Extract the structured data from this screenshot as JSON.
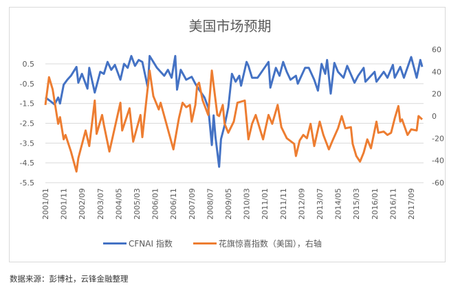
{
  "chart_data": {
    "type": "line",
    "title": "美国市场预期",
    "x_unit": "months since 2001/01",
    "x_tick_labels": [
      "2001/01",
      "2001/11",
      "2002/09",
      "2003/07",
      "2004/05",
      "2005/03",
      "2006/01",
      "2006/11",
      "2007/09",
      "2008/07",
      "2009/05",
      "2010/03",
      "2011/01",
      "2011/11",
      "2012/09",
      "2013/07",
      "2014/05",
      "2015/03",
      "2016/01",
      "2016/11",
      "2017/09"
    ],
    "x_range": [
      0,
      206
    ],
    "left_axis": {
      "ticks": [
        "0.5",
        "-0.5",
        "-1.5",
        "-2.5",
        "-3.5",
        "-4.5",
        "-5.5"
      ],
      "ylim": [
        -5.5,
        1.23
      ]
    },
    "right_axis": {
      "ticks": [
        "60",
        "40",
        "20",
        "0",
        "-20",
        "-40",
        "-60"
      ],
      "ylim": [
        -60,
        60
      ]
    },
    "grid": true,
    "legend_position": "bottom",
    "series": [
      {
        "name": "CFNAI 指数",
        "axis": "left",
        "color": "#4472c4",
        "points": [
          [
            0,
            -1.19
          ],
          [
            3,
            -1.4
          ],
          [
            5,
            -1.55
          ],
          [
            7,
            -1.2
          ],
          [
            8,
            -1.5
          ],
          [
            10,
            -0.55
          ],
          [
            12,
            -0.3
          ],
          [
            14,
            -0.1
          ],
          [
            17,
            0.35
          ],
          [
            18,
            -0.45
          ],
          [
            20,
            0.0
          ],
          [
            23,
            -0.75
          ],
          [
            24,
            0.3
          ],
          [
            27,
            -0.95
          ],
          [
            30,
            0.1
          ],
          [
            32,
            0.0
          ],
          [
            34,
            0.6
          ],
          [
            36,
            0.2
          ],
          [
            38,
            0.45
          ],
          [
            41,
            -0.3
          ],
          [
            43,
            0.5
          ],
          [
            45,
            0.3
          ],
          [
            47,
            0.9
          ],
          [
            49,
            0.4
          ],
          [
            51,
            0.7
          ],
          [
            53,
            0.6
          ],
          [
            56,
            -0.7
          ],
          [
            57,
            0.9
          ],
          [
            59,
            0.6
          ],
          [
            61,
            0.3
          ],
          [
            63,
            0.1
          ],
          [
            65,
            -0.1
          ],
          [
            67,
            0.2
          ],
          [
            69,
            -0.2
          ],
          [
            71,
            0.9
          ],
          [
            72,
            -0.8
          ],
          [
            74,
            0.2
          ],
          [
            77,
            -0.3
          ],
          [
            80,
            -0.15
          ],
          [
            82,
            -0.5
          ],
          [
            84,
            -0.8
          ],
          [
            87,
            -1.2
          ],
          [
            89,
            -1.7
          ],
          [
            91,
            -3.6
          ],
          [
            92,
            -2.1
          ],
          [
            93,
            -3.2
          ],
          [
            95,
            -4.7
          ],
          [
            96,
            -3.3
          ],
          [
            98,
            -2.6
          ],
          [
            100,
            -1.7
          ],
          [
            102,
            0.0
          ],
          [
            104,
            -0.4
          ],
          [
            106,
            -0.1
          ],
          [
            107,
            -0.6
          ],
          [
            110,
            0.6
          ],
          [
            111,
            0.4
          ],
          [
            113,
            -0.2
          ],
          [
            116,
            -0.2
          ],
          [
            119,
            0.2
          ],
          [
            122,
            0.6
          ],
          [
            123,
            -0.7
          ],
          [
            126,
            0.3
          ],
          [
            128,
            -0.1
          ],
          [
            130,
            0.6
          ],
          [
            132,
            0.1
          ],
          [
            134,
            -0.3
          ],
          [
            137,
            -0.1
          ],
          [
            138,
            -0.5
          ],
          [
            142,
            0.3
          ],
          [
            144,
            0.3
          ],
          [
            147,
            -0.3
          ],
          [
            149,
            -0.85
          ],
          [
            151,
            0.5
          ],
          [
            153,
            0.0
          ],
          [
            154,
            0.7
          ],
          [
            156,
            -1.0
          ],
          [
            158,
            0.55
          ],
          [
            160,
            0.1
          ],
          [
            163,
            -0.2
          ],
          [
            165,
            0.4
          ],
          [
            169,
            -0.45
          ],
          [
            171,
            -0.1
          ],
          [
            174,
            0.3
          ],
          [
            175,
            -0.4
          ],
          [
            180,
            0.1
          ],
          [
            181,
            -0.4
          ],
          [
            185,
            0.1
          ],
          [
            187,
            -0.2
          ],
          [
            190,
            0.45
          ],
          [
            191,
            -0.2
          ],
          [
            194,
            0.35
          ],
          [
            196,
            -0.2
          ],
          [
            200,
            0.85
          ],
          [
            203,
            -0.2
          ],
          [
            205,
            0.7
          ],
          [
            206,
            0.35
          ]
        ]
      },
      {
        "name": "花旗惊喜指数（美国），右轴",
        "axis": "right",
        "color": "#ed7d31",
        "points": [
          [
            0,
            10
          ],
          [
            2,
            35
          ],
          [
            4,
            24
          ],
          [
            7,
            -7
          ],
          [
            8,
            -1
          ],
          [
            10,
            -21
          ],
          [
            11,
            -17
          ],
          [
            14,
            -32
          ],
          [
            17,
            -50
          ],
          [
            18,
            -38
          ],
          [
            22,
            -13
          ],
          [
            24,
            -27
          ],
          [
            27,
            14
          ],
          [
            28,
            -16
          ],
          [
            31,
            1
          ],
          [
            32,
            -8
          ],
          [
            35,
            -32
          ],
          [
            41,
            12
          ],
          [
            42,
            -13
          ],
          [
            46,
            7
          ],
          [
            48,
            -23
          ],
          [
            52,
            1
          ],
          [
            53,
            -19
          ],
          [
            57,
            41
          ],
          [
            59,
            18
          ],
          [
            62,
            6
          ],
          [
            63,
            12
          ],
          [
            70,
            -30
          ],
          [
            73,
            -2
          ],
          [
            75,
            12
          ],
          [
            77,
            8
          ],
          [
            79,
            10
          ],
          [
            80,
            -5
          ],
          [
            82,
            10
          ],
          [
            83,
            28
          ],
          [
            84,
            30
          ],
          [
            86,
            14
          ],
          [
            89,
            1
          ],
          [
            91,
            41
          ],
          [
            94,
            1
          ],
          [
            95,
            0
          ],
          [
            97,
            10
          ],
          [
            98,
            -7
          ],
          [
            100,
            -15
          ],
          [
            103,
            -5
          ],
          [
            105,
            12
          ],
          [
            107,
            13
          ],
          [
            109,
            14
          ],
          [
            111,
            -21
          ],
          [
            113,
            -7
          ],
          [
            115,
            1
          ],
          [
            119,
            -21
          ],
          [
            122,
            1
          ],
          [
            124,
            -7
          ],
          [
            127,
            10
          ],
          [
            129,
            -10
          ],
          [
            132,
            -20
          ],
          [
            136,
            -25
          ],
          [
            137,
            -36
          ],
          [
            139,
            -22
          ],
          [
            141,
            -17
          ],
          [
            143,
            -20
          ],
          [
            145,
            -7
          ],
          [
            147,
            -27
          ],
          [
            150,
            -5
          ],
          [
            152,
            -17
          ],
          [
            155,
            -30
          ],
          [
            157,
            -22
          ],
          [
            160,
            -11
          ],
          [
            162,
            0
          ],
          [
            164,
            -11
          ],
          [
            167,
            -10
          ],
          [
            168,
            -25
          ],
          [
            170,
            -36
          ],
          [
            172,
            -41
          ],
          [
            174,
            -33
          ],
          [
            176,
            -21
          ],
          [
            178,
            -29
          ],
          [
            181,
            -5
          ],
          [
            182,
            -15
          ],
          [
            185,
            -14
          ],
          [
            187,
            -17
          ],
          [
            189,
            -15
          ],
          [
            191,
            -2
          ],
          [
            193,
            9
          ],
          [
            194,
            -5
          ],
          [
            195,
            -3
          ],
          [
            198,
            -17
          ],
          [
            200,
            -12
          ],
          [
            203,
            -13
          ],
          [
            204,
            0
          ],
          [
            206,
            -3
          ]
        ]
      }
    ]
  },
  "legend": {
    "items": [
      "CFNAI 指数",
      "花旗惊喜指数（美国），右轴"
    ]
  },
  "caption": "数据来源：彭博社，云锋金融整理"
}
